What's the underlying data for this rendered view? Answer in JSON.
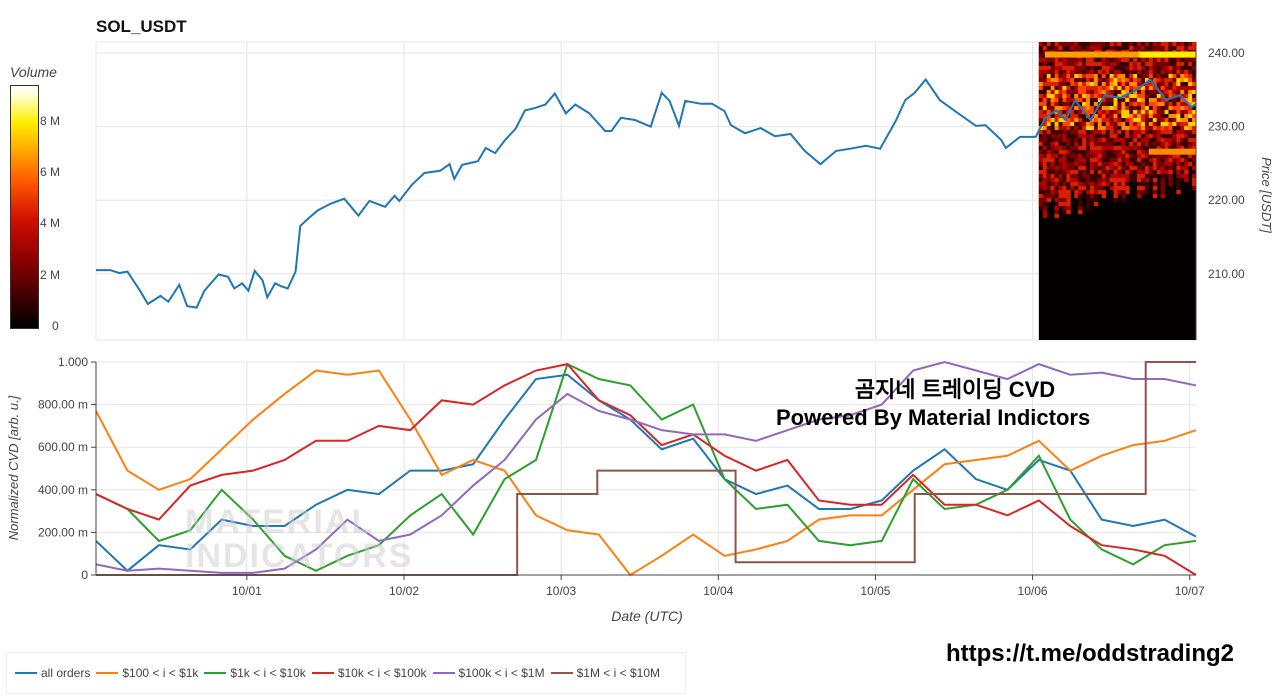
{
  "title": "SOL_USDT",
  "watermark": {
    "line1": "곰지네 트레이딩 CVD",
    "line2": "Powered By Material Indictors",
    "url": "https://t.me/oddstrading2",
    "logo_text": "MATERIAL INDICATORS"
  },
  "colorbar": {
    "title": "Volume",
    "ticks": [
      "0",
      "2 M",
      "4 M",
      "6 M",
      "8 M"
    ]
  },
  "chart_data": [
    {
      "type": "line",
      "title": "SOL_USDT",
      "ylabel": "Price [USDT]",
      "ylim": [
        201,
        241.5
      ],
      "xlim": [
        -0.96,
        6.04
      ],
      "x_unit": "days since 10/01",
      "yticks": [
        "210.00",
        "220.00",
        "230.00",
        "240.00"
      ],
      "heatmap": {
        "label": "Volume",
        "range": [
          0,
          9500000
        ],
        "x_range": [
          5.04,
          6.04
        ]
      },
      "series": [
        {
          "name": "price",
          "color": "#1f77b4",
          "points": [
            [
              -0.96,
              210.5
            ],
            [
              -0.87,
              210.5
            ],
            [
              -0.81,
              210.1
            ],
            [
              -0.76,
              210.3
            ],
            [
              -0.68,
              207.7
            ],
            [
              -0.63,
              205.9
            ],
            [
              -0.55,
              207.0
            ],
            [
              -0.5,
              206.2
            ],
            [
              -0.43,
              208.5
            ],
            [
              -0.38,
              205.6
            ],
            [
              -0.32,
              205.4
            ],
            [
              -0.27,
              207.7
            ],
            [
              -0.18,
              209.9
            ],
            [
              -0.12,
              209.6
            ],
            [
              -0.08,
              208.0
            ],
            [
              -0.03,
              208.7
            ],
            [
              0.01,
              207.7
            ],
            [
              0.05,
              210.4
            ],
            [
              0.1,
              209.1
            ],
            [
              0.13,
              206.8
            ],
            [
              0.18,
              208.7
            ],
            [
              0.22,
              208.3
            ],
            [
              0.26,
              208.0
            ],
            [
              0.31,
              210.3
            ],
            [
              0.34,
              216.5
            ],
            [
              0.39,
              217.5
            ],
            [
              0.45,
              218.6
            ],
            [
              0.53,
              219.5
            ],
            [
              0.62,
              220.2
            ],
            [
              0.71,
              217.9
            ],
            [
              0.78,
              219.9
            ],
            [
              0.88,
              219.1
            ],
            [
              0.94,
              220.6
            ],
            [
              0.97,
              219.9
            ],
            [
              1.05,
              222.1
            ],
            [
              1.13,
              223.7
            ],
            [
              1.23,
              224.0
            ],
            [
              1.29,
              224.9
            ],
            [
              1.32,
              222.9
            ],
            [
              1.37,
              224.8
            ],
            [
              1.47,
              225.3
            ],
            [
              1.52,
              227.1
            ],
            [
              1.58,
              226.4
            ],
            [
              1.64,
              228.1
            ],
            [
              1.71,
              229.7
            ],
            [
              1.77,
              232.2
            ],
            [
              1.83,
              232.5
            ],
            [
              1.9,
              233.0
            ],
            [
              1.96,
              234.5
            ],
            [
              2.03,
              231.8
            ],
            [
              2.09,
              233.0
            ],
            [
              2.18,
              231.8
            ],
            [
              2.28,
              229.4
            ],
            [
              2.32,
              229.4
            ],
            [
              2.38,
              231.2
            ],
            [
              2.47,
              230.9
            ],
            [
              2.57,
              230.0
            ],
            [
              2.64,
              234.6
            ],
            [
              2.69,
              233.5
            ],
            [
              2.75,
              230.1
            ],
            [
              2.79,
              233.5
            ],
            [
              2.89,
              233.1
            ],
            [
              2.96,
              233.1
            ],
            [
              3.04,
              232.1
            ],
            [
              3.08,
              230.2
            ],
            [
              3.17,
              229.1
            ],
            [
              3.27,
              229.8
            ],
            [
              3.36,
              228.7
            ],
            [
              3.46,
              229.0
            ],
            [
              3.55,
              226.7
            ],
            [
              3.65,
              224.9
            ],
            [
              3.75,
              226.7
            ],
            [
              3.84,
              227.0
            ],
            [
              3.94,
              227.4
            ],
            [
              4.03,
              227.0
            ],
            [
              4.13,
              230.8
            ],
            [
              4.19,
              233.6
            ],
            [
              4.25,
              234.6
            ],
            [
              4.32,
              236.4
            ],
            [
              4.41,
              233.6
            ],
            [
              4.54,
              231.6
            ],
            [
              4.64,
              230.1
            ],
            [
              4.7,
              230.2
            ],
            [
              4.8,
              228.2
            ],
            [
              4.83,
              227.1
            ],
            [
              4.92,
              228.6
            ],
            [
              5.02,
              228.6
            ],
            [
              5.08,
              231.2
            ],
            [
              5.15,
              232.2
            ],
            [
              5.21,
              230.9
            ],
            [
              5.27,
              233.6
            ],
            [
              5.37,
              230.9
            ],
            [
              5.46,
              234.3
            ],
            [
              5.56,
              233.9
            ],
            [
              5.66,
              235.0
            ],
            [
              5.75,
              236.4
            ],
            [
              5.85,
              233.6
            ],
            [
              5.94,
              234.3
            ],
            [
              6.01,
              232.6
            ],
            [
              6.04,
              233.1
            ]
          ]
        }
      ]
    },
    {
      "type": "line",
      "xlabel": "Date (UTC)",
      "ylabel": "Normalized CVD [arb. u.]",
      "ylim": [
        0,
        1
      ],
      "xlim": [
        -0.96,
        6.04
      ],
      "xticks": [
        "10/01",
        "10/02",
        "10/03",
        "10/04",
        "10/05",
        "10/06",
        "10/07"
      ],
      "yticks": [
        "0",
        "200.00 m",
        "400.00 m",
        "600.00 m",
        "800.00 m",
        "1.000"
      ],
      "x_start": -0.96,
      "x_step": 0.2,
      "series": [
        {
          "name": "all orders",
          "color": "#1f77b4",
          "values": [
            0.16,
            0.02,
            0.14,
            0.12,
            0.26,
            0.23,
            0.23,
            0.33,
            0.4,
            0.38,
            0.49,
            0.49,
            0.52,
            0.73,
            0.92,
            0.94,
            0.82,
            0.73,
            0.59,
            0.64,
            0.45,
            0.38,
            0.42,
            0.31,
            0.31,
            0.35,
            0.49,
            0.59,
            0.45,
            0.4,
            0.54,
            0.49,
            0.26,
            0.23,
            0.26,
            0.18
          ]
        },
        {
          "name": "$100 < i < $1k",
          "color": "#ff7f0e",
          "values": [
            0.77,
            0.49,
            0.4,
            0.45,
            0.59,
            0.73,
            0.85,
            0.96,
            0.94,
            0.96,
            0.73,
            0.47,
            0.54,
            0.49,
            0.28,
            0.21,
            0.19,
            0.0,
            0.09,
            0.19,
            0.09,
            0.12,
            0.16,
            0.26,
            0.28,
            0.28,
            0.4,
            0.52,
            0.54,
            0.56,
            0.63,
            0.49,
            0.56,
            0.61,
            0.63,
            0.68
          ]
        },
        {
          "name": "$1k < i < $10k",
          "color": "#2ca02c",
          "values": [
            0.38,
            0.31,
            0.16,
            0.21,
            0.4,
            0.26,
            0.09,
            0.02,
            0.09,
            0.14,
            0.28,
            0.38,
            0.19,
            0.45,
            0.54,
            0.99,
            0.92,
            0.89,
            0.73,
            0.8,
            0.45,
            0.31,
            0.33,
            0.16,
            0.14,
            0.16,
            0.45,
            0.31,
            0.33,
            0.4,
            0.56,
            0.26,
            0.12,
            0.05,
            0.14,
            0.16
          ]
        },
        {
          "name": "$10k < i < $100k",
          "color": "#d62728",
          "values": [
            0.38,
            0.31,
            0.26,
            0.42,
            0.47,
            0.49,
            0.54,
            0.63,
            0.63,
            0.7,
            0.68,
            0.82,
            0.8,
            0.89,
            0.96,
            0.99,
            0.82,
            0.75,
            0.61,
            0.66,
            0.56,
            0.49,
            0.54,
            0.35,
            0.33,
            0.33,
            0.47,
            0.33,
            0.33,
            0.28,
            0.35,
            0.23,
            0.14,
            0.12,
            0.09,
            0.0
          ]
        },
        {
          "name": "$100k < i < $1M",
          "color": "#9467bd",
          "values": [
            0.05,
            0.02,
            0.03,
            0.02,
            0.01,
            0.01,
            0.03,
            0.12,
            0.26,
            0.16,
            0.19,
            0.28,
            0.42,
            0.54,
            0.73,
            0.85,
            0.77,
            0.73,
            0.68,
            0.66,
            0.66,
            0.63,
            0.68,
            0.73,
            0.75,
            0.8,
            0.96,
            1.0,
            0.96,
            0.92,
            0.99,
            0.94,
            0.95,
            0.92,
            0.92,
            0.89
          ]
        },
        {
          "name": "$1M < i < $10M",
          "color": "#8c564b",
          "step_points": [
            [
              -0.96,
              0
            ],
            [
              1.72,
              0
            ],
            [
              1.72,
              0.38
            ],
            [
              2.23,
              0.38
            ],
            [
              2.23,
              0.49
            ],
            [
              3.11,
              0.49
            ],
            [
              3.11,
              0.06
            ],
            [
              4.25,
              0.06
            ],
            [
              4.25,
              0.38
            ],
            [
              5.72,
              0.38
            ],
            [
              5.72,
              1.0
            ],
            [
              6.04,
              1.0
            ]
          ]
        }
      ]
    }
  ]
}
